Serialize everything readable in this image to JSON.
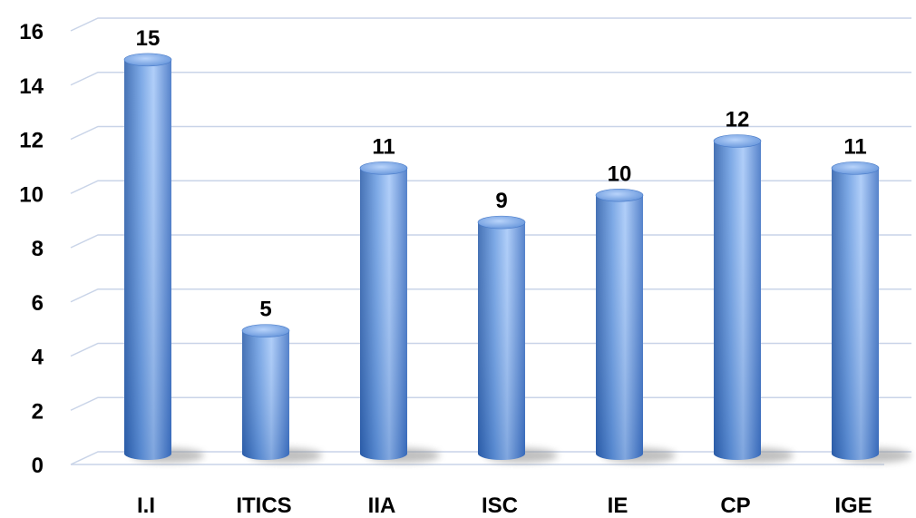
{
  "chart_data": {
    "type": "bar",
    "style": "3d-cylinder",
    "categories": [
      "I.I",
      "ITICS",
      "IIA",
      "ISC",
      "IE",
      "CP",
      "IGE"
    ],
    "values": [
      15,
      5,
      11,
      9,
      10,
      12,
      11
    ],
    "data_labels": [
      "15",
      "5",
      "11",
      "9",
      "10",
      "12",
      "11"
    ],
    "title": "",
    "xlabel": "",
    "ylabel": "",
    "ylim": [
      0,
      16
    ],
    "y_ticks": [
      "0",
      "2",
      "4",
      "6",
      "8",
      "10",
      "12",
      "14",
      "16"
    ],
    "grid": true,
    "legend": "none",
    "colors": {
      "bar_dark": "#2f63b2",
      "bar_mid": "#5d92dc",
      "bar_light": "#a9cbfb",
      "bar_top": "#7ea8e6",
      "gridline": "#c9d4e8",
      "shadow": "#8a8a8a"
    }
  }
}
